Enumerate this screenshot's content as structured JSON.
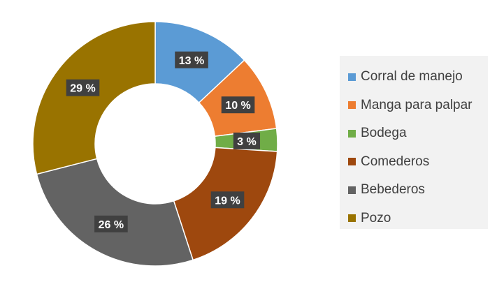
{
  "chart_data": {
    "type": "pie",
    "variant": "donut",
    "title": "",
    "categories": [
      "Corral de manejo",
      "Manga para palpar",
      "Bodega",
      "Comederos",
      "Bebederos",
      "Pozo"
    ],
    "values": [
      13,
      10,
      3,
      19,
      26,
      29
    ],
    "labels": [
      "13 %",
      "10 %",
      "3 %",
      "19 %",
      "26 %",
      "29 %"
    ],
    "colors": [
      "#5b9bd5",
      "#ed7d31",
      "#70ad47",
      "#9e480e",
      "#636363",
      "#997300"
    ],
    "legend_position": "right"
  }
}
